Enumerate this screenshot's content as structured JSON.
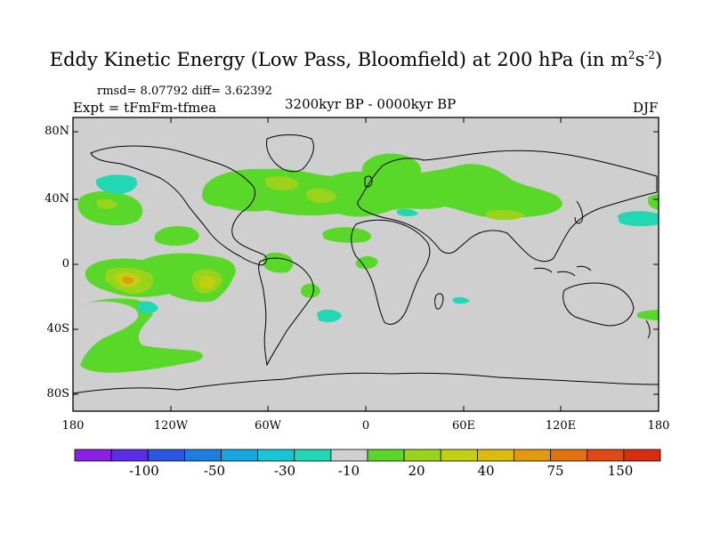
{
  "title_main": "Eddy Kinetic Energy (Low Pass, Bloomfield) at 200 hPa (in m",
  "title_exp1": "2",
  "title_mid": "s",
  "title_exp2": "-2",
  "title_end": ")",
  "stats": "rmsd= 8.07792 diff= 3.62392",
  "expt": "Expt = tFmFm-tfmea",
  "period": "3200kyr BP - 0000kyr BP",
  "season": "DJF",
  "map": {
    "lat_ticks": [
      "80N",
      "40N",
      "0",
      "40S",
      "80S"
    ],
    "lon_ticks": [
      "180",
      "120W",
      "60W",
      "0",
      "60E",
      "120E",
      "180"
    ]
  },
  "colorbar": {
    "labels": [
      "-100",
      "-50",
      "-30",
      "-10",
      "20",
      "40",
      "75",
      "150"
    ],
    "colors": [
      "#8A1FE6",
      "#5A2BE8",
      "#2B56E3",
      "#1C7FDF",
      "#16A7E0",
      "#19C6D8",
      "#22D8B4",
      "#CFCFCF",
      "#5AD82A",
      "#9AD41A",
      "#C4CF11",
      "#DDBB0C",
      "#E39A0C",
      "#E47010",
      "#E04A12",
      "#D92C10"
    ]
  },
  "regions": {
    "pos1": "#5AD82A",
    "pos2": "#9AD41A",
    "pos3": "#C4CF11",
    "pos4": "#E39A0C",
    "neg1": "#22D8B4",
    "land_bg": "#CFCFCF"
  }
}
